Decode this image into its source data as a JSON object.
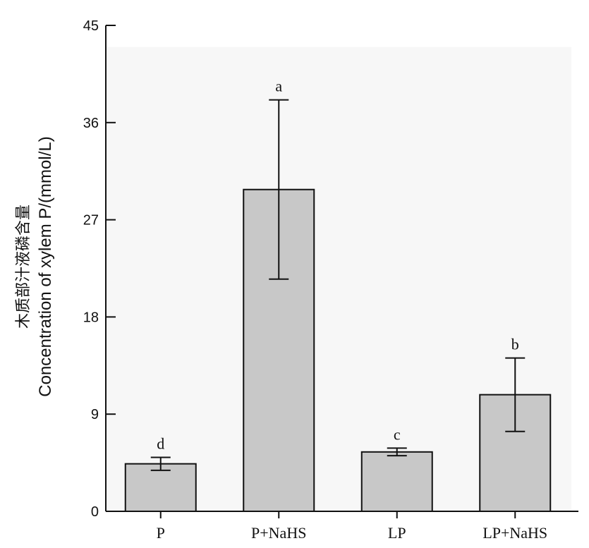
{
  "chart_data": {
    "type": "bar",
    "categories": [
      "P",
      "P+NaHS",
      "LP",
      "LP+NaHS"
    ],
    "values": [
      4.4,
      29.8,
      5.5,
      10.8
    ],
    "errors": [
      0.6,
      8.3,
      0.35,
      3.4
    ],
    "significance": [
      "d",
      "a",
      "c",
      "b"
    ],
    "ylabel_cn": "木质部汁液磷含量",
    "ylabel_en": "Concentration of xylem P/(mmol/L)",
    "xlabel": "",
    "ylim": [
      0,
      45
    ],
    "yticks": [
      0,
      9,
      18,
      27,
      36,
      45
    ],
    "bar_color": "#c8c8c8",
    "axis_color": "#111111"
  }
}
